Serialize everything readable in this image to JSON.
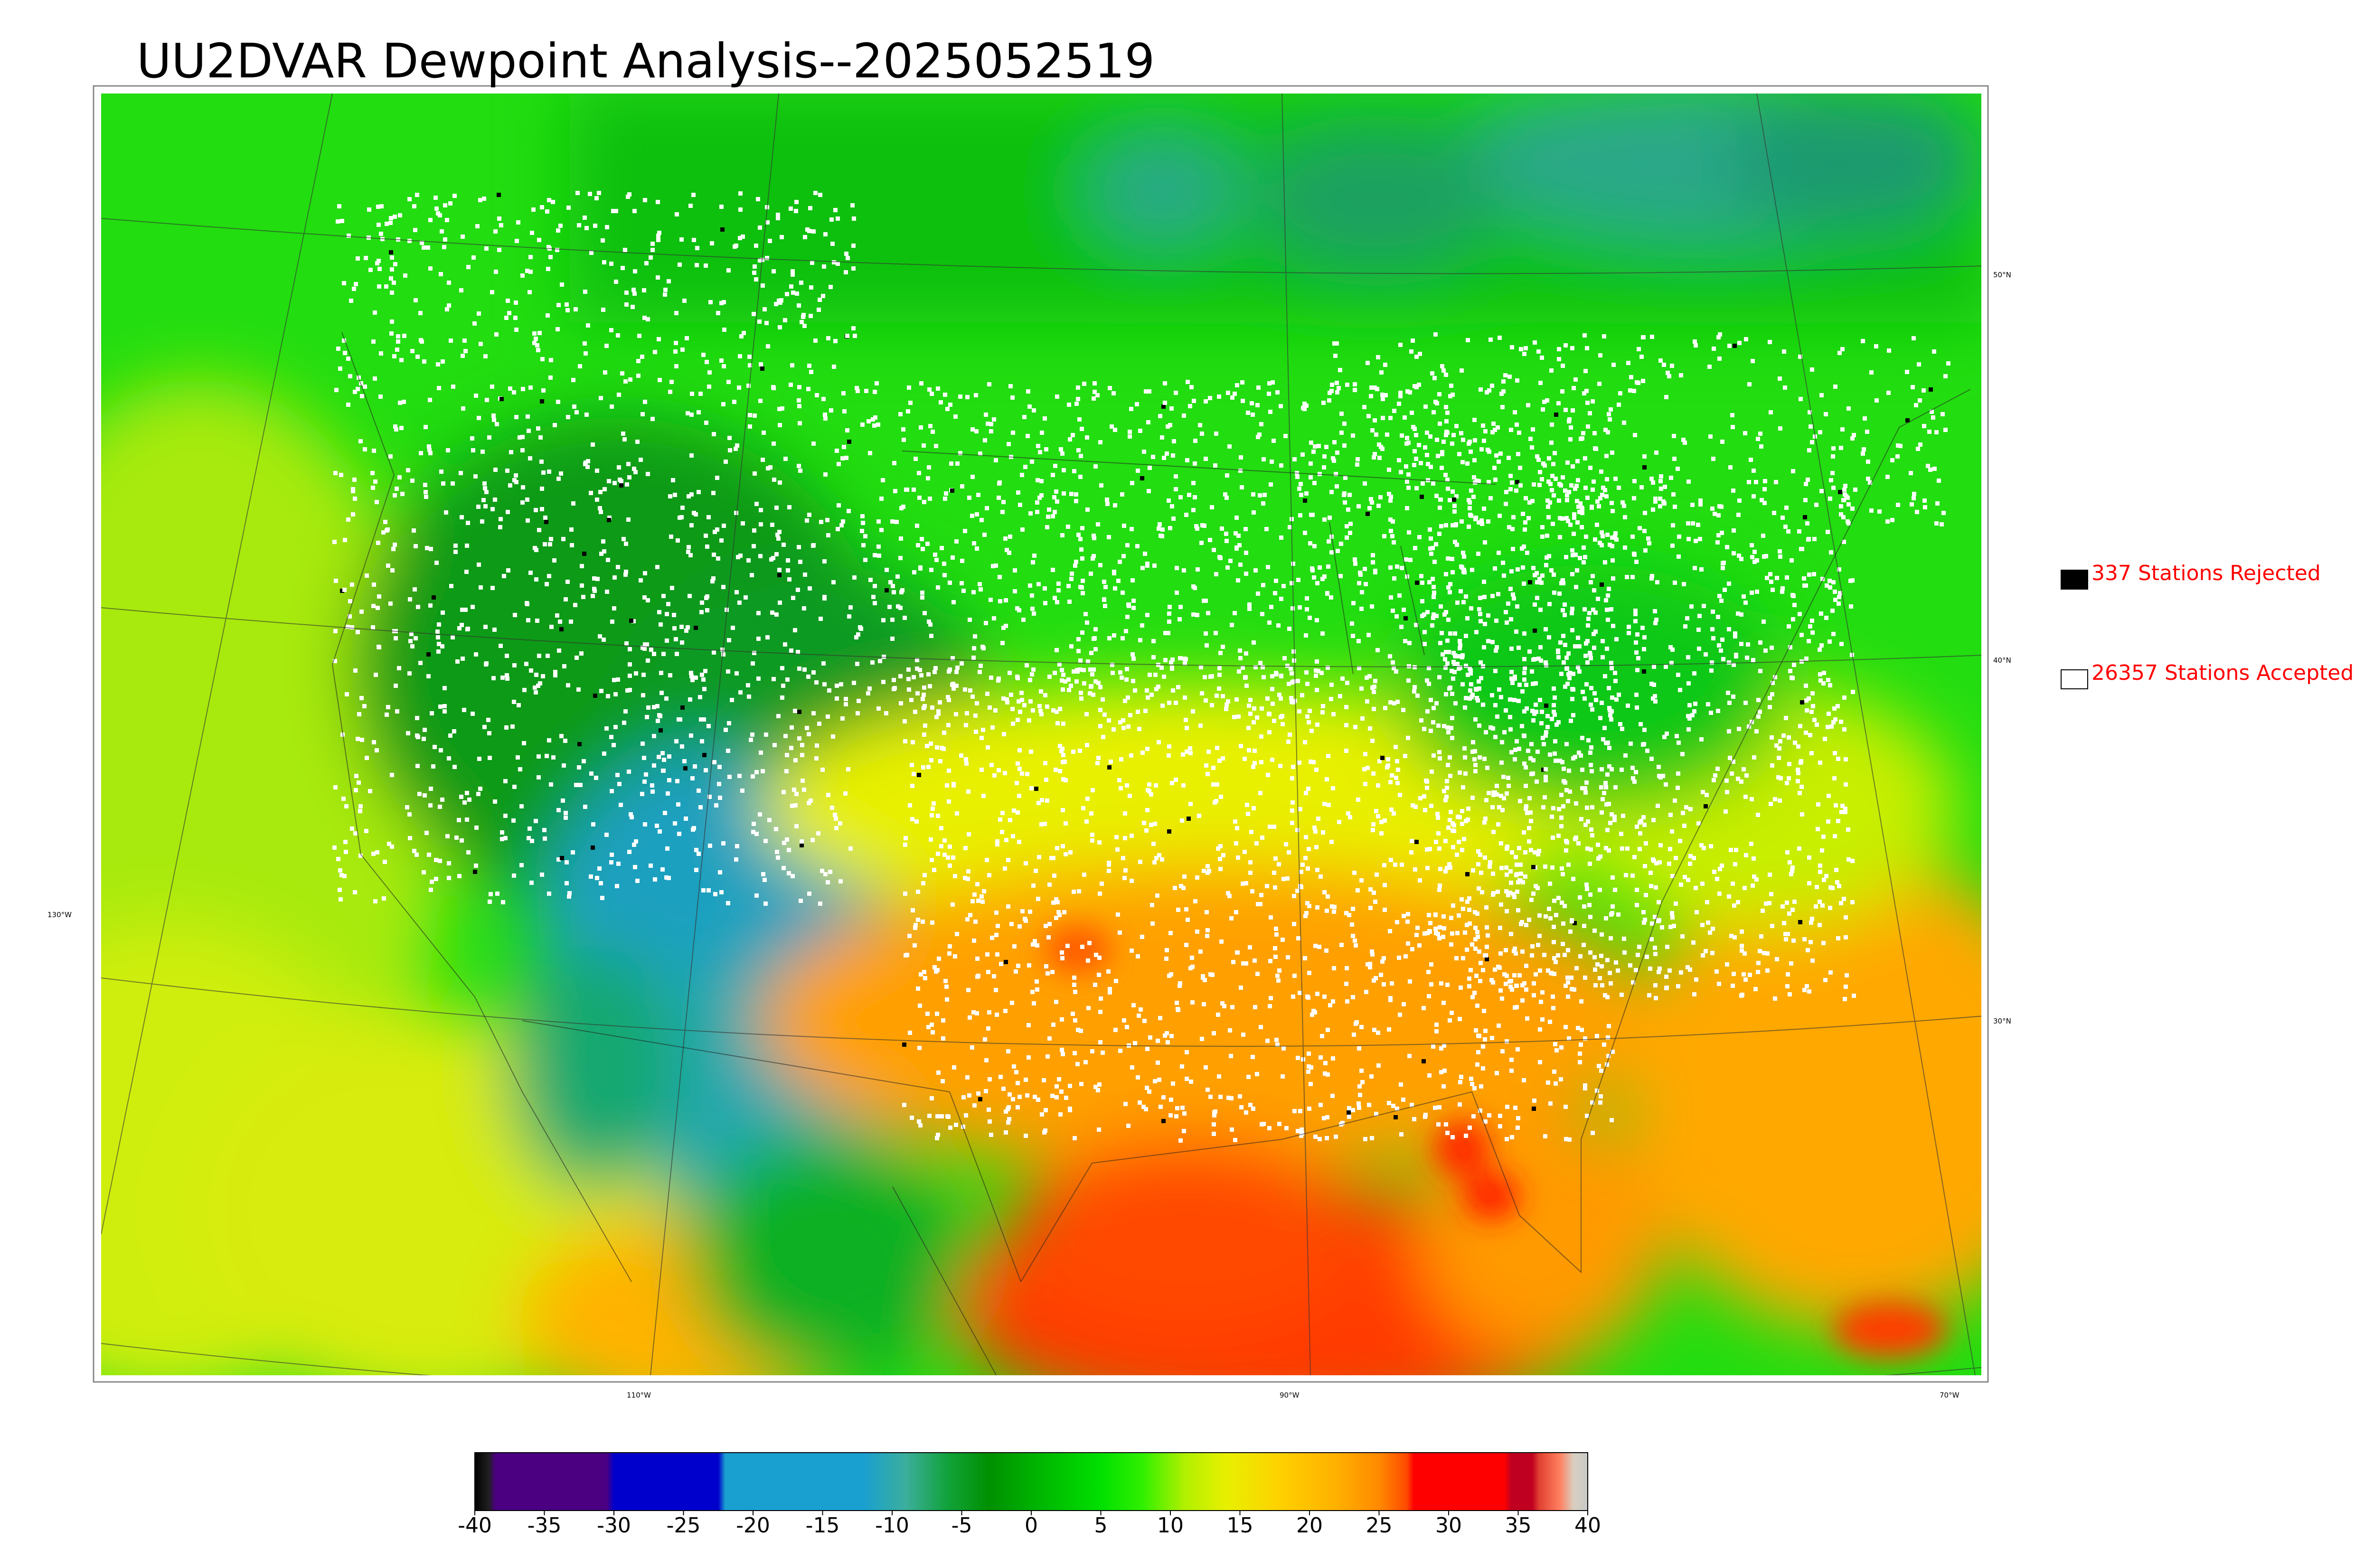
{
  "title": "UU2DVAR Dewpoint Analysis--2025052519",
  "legend": {
    "rejected": {
      "label": "337 Stations Rejected",
      "color": "#000000"
    },
    "accepted": {
      "label": "26357 Stations Accepted",
      "color": "#ffffff"
    }
  },
  "grid_labels": {
    "lat": [
      "50°N",
      "40°N",
      "30°N"
    ],
    "lon_left": "130°W",
    "lon_bottom": [
      "110°W",
      "90°W",
      "70°W"
    ]
  },
  "colorbar": {
    "ticks": [
      "-40",
      "-35",
      "-30",
      "-25",
      "-20",
      "-15",
      "-10",
      "-5",
      "0",
      "5",
      "10",
      "15",
      "20",
      "25",
      "30",
      "35",
      "40"
    ],
    "range": [
      -40,
      40
    ],
    "stops": [
      {
        "v": -40,
        "c": "#000000"
      },
      {
        "v": -39,
        "c": "#202020"
      },
      {
        "v": -38.5,
        "c": "#4b0082"
      },
      {
        "v": -30.5,
        "c": "#4b0082"
      },
      {
        "v": -30,
        "c": "#0000cd"
      },
      {
        "v": -22.5,
        "c": "#0000cd"
      },
      {
        "v": -22,
        "c": "#1aa0d0"
      },
      {
        "v": -12,
        "c": "#1aa0d0"
      },
      {
        "v": -9,
        "c": "#3cae9c"
      },
      {
        "v": -6,
        "c": "#11a23a"
      },
      {
        "v": -3,
        "c": "#009000"
      },
      {
        "v": 0,
        "c": "#00b000"
      },
      {
        "v": 5,
        "c": "#00e000"
      },
      {
        "v": 8,
        "c": "#30f000"
      },
      {
        "v": 11,
        "c": "#b0f000"
      },
      {
        "v": 14,
        "c": "#e8f000"
      },
      {
        "v": 18,
        "c": "#ffd000"
      },
      {
        "v": 22,
        "c": "#ffb000"
      },
      {
        "v": 25,
        "c": "#ff8a00"
      },
      {
        "v": 27,
        "c": "#ff4a00"
      },
      {
        "v": 27.5,
        "c": "#ff0000"
      },
      {
        "v": 34,
        "c": "#ff0000"
      },
      {
        "v": 34.5,
        "c": "#c00020"
      },
      {
        "v": 36,
        "c": "#c00020"
      },
      {
        "v": 36.5,
        "c": "#e04030"
      },
      {
        "v": 38,
        "c": "#ff8060"
      },
      {
        "v": 39,
        "c": "#d8d0c0"
      },
      {
        "v": 40,
        "c": "#c8c8c8"
      }
    ]
  },
  "colors": {
    "frame": "#000000",
    "station_accepted": "#ffffff",
    "station_rejected": "#000000"
  }
}
